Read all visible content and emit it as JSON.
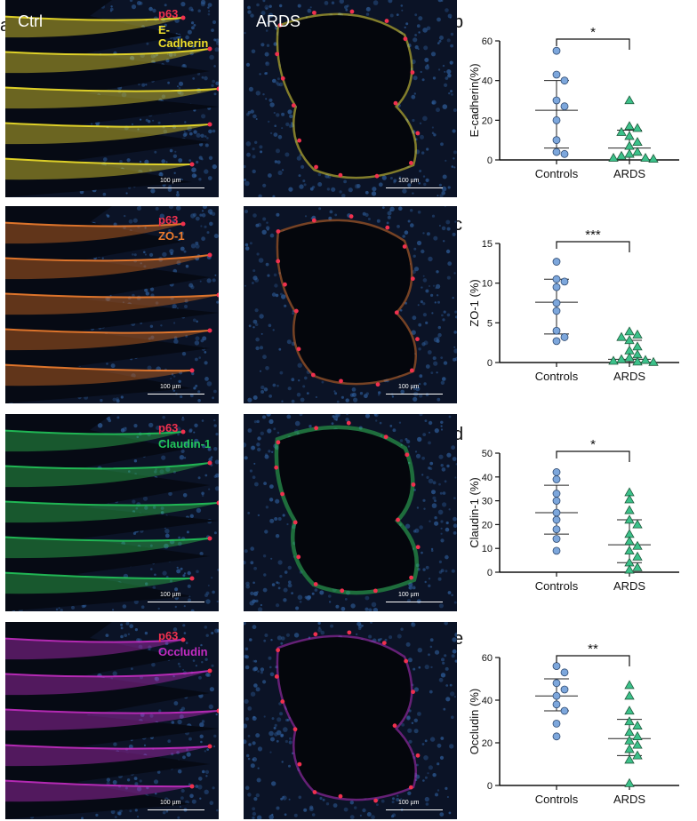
{
  "figure": {
    "panel_letters": [
      "a",
      "b",
      "c",
      "d",
      "e"
    ],
    "columns": [
      "Ctrl",
      "ARDS"
    ],
    "rows": [
      {
        "marker1": "p63",
        "marker2": "E-Cadherin",
        "marker2_color": "#f0e02a",
        "tissue_color": "#e6d530"
      },
      {
        "marker1": "p63",
        "marker2": "ZO-1",
        "marker2_color": "#f07d2e",
        "tissue_color": "#d06a22"
      },
      {
        "marker1": "p63",
        "marker2": "Claudin-1",
        "marker2_color": "#22c45a",
        "tissue_color": "#2fb84e"
      },
      {
        "marker1": "p63",
        "marker2": "Occludin",
        "marker2_color": "#c22cc0",
        "tissue_color": "#b02cb8"
      }
    ],
    "marker1_color": "#f0304e",
    "scale_bar_label": "100 µm"
  },
  "chart_data": [
    {
      "type": "scatter",
      "panel": "b",
      "ylabel": "E-cadherin(%)",
      "categories": [
        "Controls",
        "ARDS"
      ],
      "ylim": [
        0,
        60
      ],
      "yticks": [
        0,
        20,
        40,
        60
      ],
      "significance": "*",
      "series": [
        {
          "name": "Controls",
          "marker": "circle",
          "color": "#7da7dc",
          "values": [
            55,
            43,
            40,
            30,
            27,
            20,
            10,
            4,
            3
          ],
          "mean": 25,
          "sd": [
            6,
            40
          ]
        },
        {
          "name": "ARDS",
          "marker": "triangle",
          "color": "#3cc18a",
          "values": [
            30,
            17,
            16,
            14,
            12,
            9,
            7,
            4,
            3,
            2,
            1,
            1,
            0.5
          ],
          "mean": 6,
          "sd": [
            0,
            15
          ]
        }
      ]
    },
    {
      "type": "scatter",
      "panel": "c",
      "ylabel": "ZO-1 (%)",
      "categories": [
        "Controls",
        "ARDS"
      ],
      "ylim": [
        0,
        15
      ],
      "yticks": [
        0,
        5,
        10,
        15
      ],
      "significance": "***",
      "series": [
        {
          "name": "Controls",
          "marker": "circle",
          "color": "#7da7dc",
          "values": [
            12.7,
            10.5,
            10.2,
            9.5,
            7.5,
            6.5,
            4,
            3.2,
            2.7
          ],
          "mean": 7.6,
          "sd": [
            3.6,
            10.5
          ]
        },
        {
          "name": "ARDS",
          "marker": "triangle",
          "color": "#3cc18a",
          "values": [
            3.9,
            3.5,
            3.2,
            2.8,
            2.0,
            1.5,
            1.0,
            0.6,
            0.4,
            0.3,
            0.2,
            0.1,
            0.05
          ],
          "mean": 0.4,
          "sd": [
            0,
            2.8
          ]
        }
      ]
    },
    {
      "type": "scatter",
      "panel": "d",
      "ylabel": "Claudin-1 (%)",
      "categories": [
        "Controls",
        "ARDS"
      ],
      "ylim": [
        0,
        50
      ],
      "yticks": [
        0,
        10,
        20,
        30,
        40,
        50
      ],
      "significance": "*",
      "series": [
        {
          "name": "Controls",
          "marker": "circle",
          "color": "#7da7dc",
          "values": [
            42,
            39,
            33,
            30,
            25,
            22,
            18,
            14,
            9
          ],
          "mean": 25,
          "sd": [
            16,
            36.5
          ]
        },
        {
          "name": "ARDS",
          "marker": "triangle",
          "color": "#3cc18a",
          "values": [
            33.5,
            30.5,
            26,
            22,
            20,
            16,
            13,
            11,
            9,
            6.5,
            4,
            2,
            1
          ],
          "mean": 11.5,
          "sd": [
            4,
            22
          ]
        }
      ]
    },
    {
      "type": "scatter",
      "panel": "e",
      "ylabel": "Occludin (%)",
      "categories": [
        "Controls",
        "ARDS"
      ],
      "ylim": [
        0,
        60
      ],
      "yticks": [
        0,
        20,
        40,
        60
      ],
      "significance": "**",
      "series": [
        {
          "name": "Controls",
          "marker": "circle",
          "color": "#7da7dc",
          "values": [
            56,
            53,
            48,
            45,
            42,
            38,
            35,
            29,
            23
          ],
          "mean": 42,
          "sd": [
            35,
            50
          ]
        },
        {
          "name": "ARDS",
          "marker": "triangle",
          "color": "#3cc18a",
          "values": [
            47,
            42,
            35,
            30,
            28,
            25,
            23,
            21,
            19,
            17,
            14,
            12,
            1
          ],
          "mean": 22,
          "sd": [
            14,
            31
          ]
        }
      ]
    }
  ]
}
